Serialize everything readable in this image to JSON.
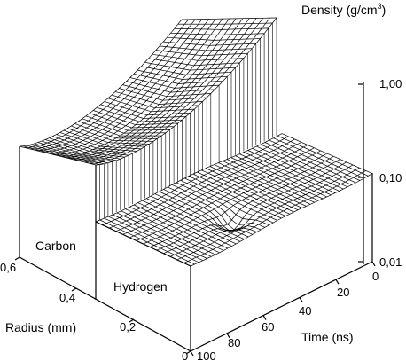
{
  "chart_data": {
    "type": "surface",
    "zlabel": "Density (g/cm",
    "zlabel_sup": "3",
    "zlabel_close": ")",
    "xlabel": "Time (ns)",
    "ylabel": "Radius (mm)",
    "z_scale": "log",
    "zlim": [
      0.01,
      1.0
    ],
    "z_ticks": [
      "1,00",
      "0,10",
      "0,01"
    ],
    "x_ticks": [
      "0",
      "20",
      "40",
      "60",
      "80",
      "100"
    ],
    "y_ticks": [
      "0",
      "0,2",
      "0,4",
      "0,6"
    ],
    "regions": [
      "Carbon",
      "Hydrogen"
    ],
    "series": [
      {
        "name": "Carbon",
        "radius": [
          0.3,
          0.6
        ]
      },
      {
        "name": "Hydrogen",
        "radius": [
          0.0,
          0.3
        ]
      }
    ],
    "grid": false
  }
}
